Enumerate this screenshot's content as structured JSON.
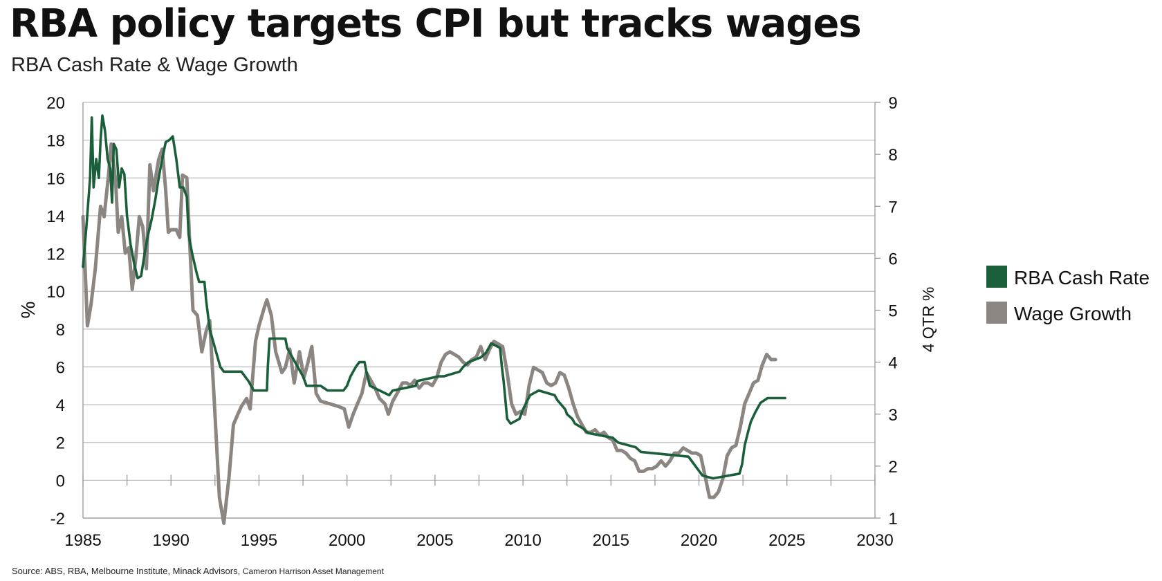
{
  "header": {
    "title": "RBA policy targets CPI but tracks wages",
    "subtitle": "RBA Cash Rate & Wage Growth"
  },
  "footer": {
    "source_main": "Source: ABS, RBA, Melbourne Institute, Minack Advisors, ",
    "source_extra": "Cameron Harrison Asset Management"
  },
  "colors": {
    "cash_rate": "#1b5e3a",
    "wage_growth": "#8c8682",
    "grid": "#bdbdbd",
    "axis": "#999999"
  },
  "chart_data": {
    "type": "line",
    "title": "RBA policy targets CPI but tracks wages",
    "subtitle": "RBA Cash Rate & Wage Growth",
    "xlabel": "",
    "ylabel": "%",
    "y2label": "4 QTR %",
    "xlim": [
      1985,
      2030
    ],
    "ylim": [
      -2,
      20
    ],
    "y2lim": [
      1,
      9
    ],
    "x_ticks": [
      "1985",
      "1990",
      "1995",
      "2000",
      "2005",
      "2010",
      "2015",
      "2020",
      "2025",
      "2030"
    ],
    "y_ticks": [
      "-2",
      "0",
      "2",
      "4",
      "6",
      "8",
      "10",
      "12",
      "14",
      "16",
      "18",
      "20"
    ],
    "y2_ticks": [
      "1",
      "2",
      "3",
      "4",
      "5",
      "6",
      "7",
      "8",
      "9"
    ],
    "grid": true,
    "legend_position": "right",
    "series": [
      {
        "name": "RBA Cash Rate",
        "axis": "left",
        "points": [
          [
            1985.0,
            11.3
          ],
          [
            1985.2,
            13.5
          ],
          [
            1985.4,
            16.0
          ],
          [
            1985.5,
            19.2
          ],
          [
            1985.6,
            15.5
          ],
          [
            1985.75,
            17.0
          ],
          [
            1985.9,
            16.0
          ],
          [
            1986.0,
            18.0
          ],
          [
            1986.1,
            19.3
          ],
          [
            1986.25,
            18.5
          ],
          [
            1986.4,
            17.0
          ],
          [
            1986.55,
            16.5
          ],
          [
            1986.65,
            14.7
          ],
          [
            1986.75,
            17.8
          ],
          [
            1986.9,
            17.5
          ],
          [
            1987.05,
            15.5
          ],
          [
            1987.2,
            16.5
          ],
          [
            1987.35,
            16.2
          ],
          [
            1987.5,
            14.0
          ],
          [
            1987.7,
            12.5
          ],
          [
            1987.9,
            11.5
          ],
          [
            1988.1,
            10.7
          ],
          [
            1988.3,
            10.8
          ],
          [
            1988.5,
            12.0
          ],
          [
            1988.7,
            13.0
          ],
          [
            1988.9,
            13.8
          ],
          [
            1989.1,
            14.8
          ],
          [
            1989.3,
            16.0
          ],
          [
            1989.5,
            17.0
          ],
          [
            1989.7,
            17.9
          ],
          [
            1989.9,
            18.0
          ],
          [
            1990.1,
            18.2
          ],
          [
            1990.3,
            17.0
          ],
          [
            1990.5,
            15.5
          ],
          [
            1990.7,
            15.5
          ],
          [
            1990.9,
            15.0
          ],
          [
            1991.0,
            13.0
          ],
          [
            1991.2,
            12.0
          ],
          [
            1991.45,
            11.0
          ],
          [
            1991.6,
            10.5
          ],
          [
            1991.9,
            10.5
          ],
          [
            1992.0,
            9.5
          ],
          [
            1992.2,
            8.0
          ],
          [
            1992.5,
            7.0
          ],
          [
            1992.8,
            6.0
          ],
          [
            1993.0,
            5.75
          ],
          [
            1993.5,
            5.75
          ],
          [
            1993.7,
            5.75
          ],
          [
            1994.0,
            5.75
          ],
          [
            1994.4,
            5.25
          ],
          [
            1994.7,
            4.75
          ],
          [
            1995.0,
            4.75
          ],
          [
            1995.2,
            4.75
          ],
          [
            1995.45,
            4.75
          ],
          [
            1995.5,
            6.0
          ],
          [
            1995.6,
            7.5
          ],
          [
            1995.9,
            7.5
          ],
          [
            1996.5,
            7.5
          ],
          [
            1996.6,
            7.0
          ],
          [
            1996.9,
            6.5
          ],
          [
            1997.2,
            6.0
          ],
          [
            1997.5,
            5.5
          ],
          [
            1997.7,
            5.0
          ],
          [
            1998.5,
            5.0
          ],
          [
            1998.9,
            4.75
          ],
          [
            1999.8,
            4.75
          ],
          [
            2000.0,
            5.0
          ],
          [
            2000.2,
            5.5
          ],
          [
            2000.5,
            6.0
          ],
          [
            2000.7,
            6.25
          ],
          [
            2001.0,
            6.25
          ],
          [
            2001.1,
            5.75
          ],
          [
            2001.3,
            5.0
          ],
          [
            2002.4,
            4.5
          ],
          [
            2002.6,
            4.75
          ],
          [
            2003.9,
            5.0
          ],
          [
            2004.0,
            5.25
          ],
          [
            2005.2,
            5.5
          ],
          [
            2005.5,
            5.5
          ],
          [
            2006.4,
            5.75
          ],
          [
            2006.6,
            6.0
          ],
          [
            2006.9,
            6.25
          ],
          [
            2007.6,
            6.5
          ],
          [
            2007.9,
            6.75
          ],
          [
            2008.2,
            7.25
          ],
          [
            2008.7,
            7.0
          ],
          [
            2008.8,
            6.0
          ],
          [
            2008.9,
            5.25
          ],
          [
            2009.0,
            4.25
          ],
          [
            2009.1,
            3.25
          ],
          [
            2009.3,
            3.0
          ],
          [
            2009.8,
            3.25
          ],
          [
            2010.0,
            3.75
          ],
          [
            2010.4,
            4.5
          ],
          [
            2010.9,
            4.75
          ],
          [
            2011.8,
            4.5
          ],
          [
            2011.95,
            4.25
          ],
          [
            2012.4,
            3.75
          ],
          [
            2012.5,
            3.5
          ],
          [
            2012.8,
            3.25
          ],
          [
            2012.95,
            3.0
          ],
          [
            2013.4,
            2.75
          ],
          [
            2013.7,
            2.5
          ],
          [
            2015.1,
            2.25
          ],
          [
            2015.4,
            2.0
          ],
          [
            2016.4,
            1.75
          ],
          [
            2016.7,
            1.5
          ],
          [
            2019.4,
            1.25
          ],
          [
            2019.6,
            1.0
          ],
          [
            2019.8,
            0.75
          ],
          [
            2020.2,
            0.25
          ],
          [
            2020.8,
            0.1
          ],
          [
            2022.3,
            0.35
          ],
          [
            2022.45,
            0.85
          ],
          [
            2022.6,
            1.85
          ],
          [
            2022.8,
            2.6
          ],
          [
            2022.95,
            3.1
          ],
          [
            2023.2,
            3.6
          ],
          [
            2023.5,
            4.1
          ],
          [
            2023.9,
            4.35
          ],
          [
            2024.9,
            4.35
          ]
        ]
      },
      {
        "name": "Wage Growth",
        "axis": "right",
        "points": [
          [
            1985.0,
            6.8
          ],
          [
            1985.25,
            4.7
          ],
          [
            1985.45,
            5.1
          ],
          [
            1985.7,
            5.8
          ],
          [
            1986.0,
            7.0
          ],
          [
            1986.2,
            6.8
          ],
          [
            1986.45,
            7.6
          ],
          [
            1986.6,
            8.2
          ],
          [
            1986.85,
            7.5
          ],
          [
            1987.0,
            6.5
          ],
          [
            1987.2,
            6.8
          ],
          [
            1987.4,
            6.1
          ],
          [
            1987.6,
            6.2
          ],
          [
            1987.8,
            5.4
          ],
          [
            1988.0,
            6.0
          ],
          [
            1988.2,
            6.8
          ],
          [
            1988.4,
            6.6
          ],
          [
            1988.6,
            5.8
          ],
          [
            1988.8,
            7.8
          ],
          [
            1989.0,
            7.3
          ],
          [
            1989.3,
            7.9
          ],
          [
            1989.5,
            8.1
          ],
          [
            1989.7,
            7.3
          ],
          [
            1989.85,
            6.5
          ],
          [
            1990.0,
            6.55
          ],
          [
            1990.3,
            6.55
          ],
          [
            1990.5,
            6.4
          ],
          [
            1990.65,
            7.6
          ],
          [
            1990.9,
            7.55
          ],
          [
            1991.05,
            6.4
          ],
          [
            1991.25,
            5.0
          ],
          [
            1991.5,
            4.9
          ],
          [
            1991.75,
            4.2
          ],
          [
            1992.0,
            4.6
          ],
          [
            1992.2,
            4.8
          ],
          [
            1992.45,
            3.3
          ],
          [
            1992.75,
            1.4
          ],
          [
            1993.0,
            0.9
          ],
          [
            1993.3,
            1.8
          ],
          [
            1993.55,
            2.8
          ],
          [
            1993.8,
            3.0
          ],
          [
            1994.0,
            3.15
          ],
          [
            1994.3,
            3.3
          ],
          [
            1994.5,
            3.1
          ],
          [
            1994.8,
            4.4
          ],
          [
            1995.0,
            4.7
          ],
          [
            1995.3,
            5.05
          ],
          [
            1995.45,
            5.2
          ],
          [
            1995.7,
            4.9
          ],
          [
            1995.95,
            4.2
          ],
          [
            1996.3,
            3.8
          ],
          [
            1996.5,
            3.9
          ],
          [
            1996.75,
            4.25
          ],
          [
            1997.0,
            3.6
          ],
          [
            1997.3,
            4.2
          ],
          [
            1997.55,
            3.7
          ],
          [
            1997.75,
            3.95
          ],
          [
            1998.0,
            4.3
          ],
          [
            1998.25,
            3.4
          ],
          [
            1998.5,
            3.25
          ],
          [
            1999.0,
            3.2
          ],
          [
            1999.5,
            3.15
          ],
          [
            1999.85,
            3.1
          ],
          [
            2000.1,
            2.75
          ],
          [
            2000.35,
            3.0
          ],
          [
            2000.6,
            3.2
          ],
          [
            2000.85,
            3.4
          ],
          [
            2001.1,
            3.8
          ],
          [
            2001.35,
            3.65
          ],
          [
            2001.6,
            3.5
          ],
          [
            2001.85,
            3.3
          ],
          [
            2002.15,
            3.2
          ],
          [
            2002.35,
            3.0
          ],
          [
            2002.6,
            3.25
          ],
          [
            2002.85,
            3.4
          ],
          [
            2003.15,
            3.6
          ],
          [
            2003.4,
            3.6
          ],
          [
            2003.6,
            3.55
          ],
          [
            2003.85,
            3.65
          ],
          [
            2004.1,
            3.5
          ],
          [
            2004.35,
            3.6
          ],
          [
            2004.6,
            3.6
          ],
          [
            2004.85,
            3.55
          ],
          [
            2005.1,
            3.7
          ],
          [
            2005.35,
            4.0
          ],
          [
            2005.6,
            4.15
          ],
          [
            2005.85,
            4.2
          ],
          [
            2006.1,
            4.15
          ],
          [
            2006.35,
            4.1
          ],
          [
            2006.6,
            4.0
          ],
          [
            2006.85,
            3.95
          ],
          [
            2007.1,
            4.05
          ],
          [
            2007.35,
            4.1
          ],
          [
            2007.6,
            4.3
          ],
          [
            2007.85,
            4.05
          ],
          [
            2008.1,
            4.25
          ],
          [
            2008.35,
            4.4
          ],
          [
            2008.6,
            4.35
          ],
          [
            2008.85,
            4.3
          ],
          [
            2009.1,
            3.8
          ],
          [
            2009.35,
            3.2
          ],
          [
            2009.6,
            3.0
          ],
          [
            2009.85,
            3.05
          ],
          [
            2010.1,
            3.0
          ],
          [
            2010.35,
            3.55
          ],
          [
            2010.6,
            3.9
          ],
          [
            2010.85,
            3.85
          ],
          [
            2011.1,
            3.8
          ],
          [
            2011.35,
            3.6
          ],
          [
            2011.6,
            3.55
          ],
          [
            2011.85,
            3.6
          ],
          [
            2012.1,
            3.8
          ],
          [
            2012.35,
            3.75
          ],
          [
            2012.6,
            3.5
          ],
          [
            2012.85,
            3.2
          ],
          [
            2013.1,
            2.95
          ],
          [
            2013.35,
            2.8
          ],
          [
            2013.6,
            2.65
          ],
          [
            2013.85,
            2.65
          ],
          [
            2014.1,
            2.7
          ],
          [
            2014.35,
            2.6
          ],
          [
            2014.6,
            2.65
          ],
          [
            2014.85,
            2.55
          ],
          [
            2015.1,
            2.5
          ],
          [
            2015.35,
            2.3
          ],
          [
            2015.6,
            2.3
          ],
          [
            2015.85,
            2.25
          ],
          [
            2016.1,
            2.15
          ],
          [
            2016.35,
            2.1
          ],
          [
            2016.6,
            1.9
          ],
          [
            2016.85,
            1.9
          ],
          [
            2017.1,
            1.95
          ],
          [
            2017.35,
            1.95
          ],
          [
            2017.6,
            2.0
          ],
          [
            2017.85,
            2.1
          ],
          [
            2018.1,
            2.0
          ],
          [
            2018.35,
            2.1
          ],
          [
            2018.6,
            2.25
          ],
          [
            2018.85,
            2.25
          ],
          [
            2019.1,
            2.35
          ],
          [
            2019.35,
            2.3
          ],
          [
            2019.6,
            2.25
          ],
          [
            2019.85,
            2.25
          ],
          [
            2020.1,
            2.2
          ],
          [
            2020.35,
            1.8
          ],
          [
            2020.6,
            1.4
          ],
          [
            2020.85,
            1.4
          ],
          [
            2021.1,
            1.5
          ],
          [
            2021.35,
            1.75
          ],
          [
            2021.6,
            2.2
          ],
          [
            2021.85,
            2.35
          ],
          [
            2022.1,
            2.4
          ],
          [
            2022.35,
            2.75
          ],
          [
            2022.6,
            3.2
          ],
          [
            2022.85,
            3.4
          ],
          [
            2023.1,
            3.6
          ],
          [
            2023.35,
            3.65
          ],
          [
            2023.6,
            3.95
          ],
          [
            2023.85,
            4.15
          ],
          [
            2024.1,
            4.05
          ],
          [
            2024.35,
            4.05
          ]
        ]
      }
    ]
  }
}
